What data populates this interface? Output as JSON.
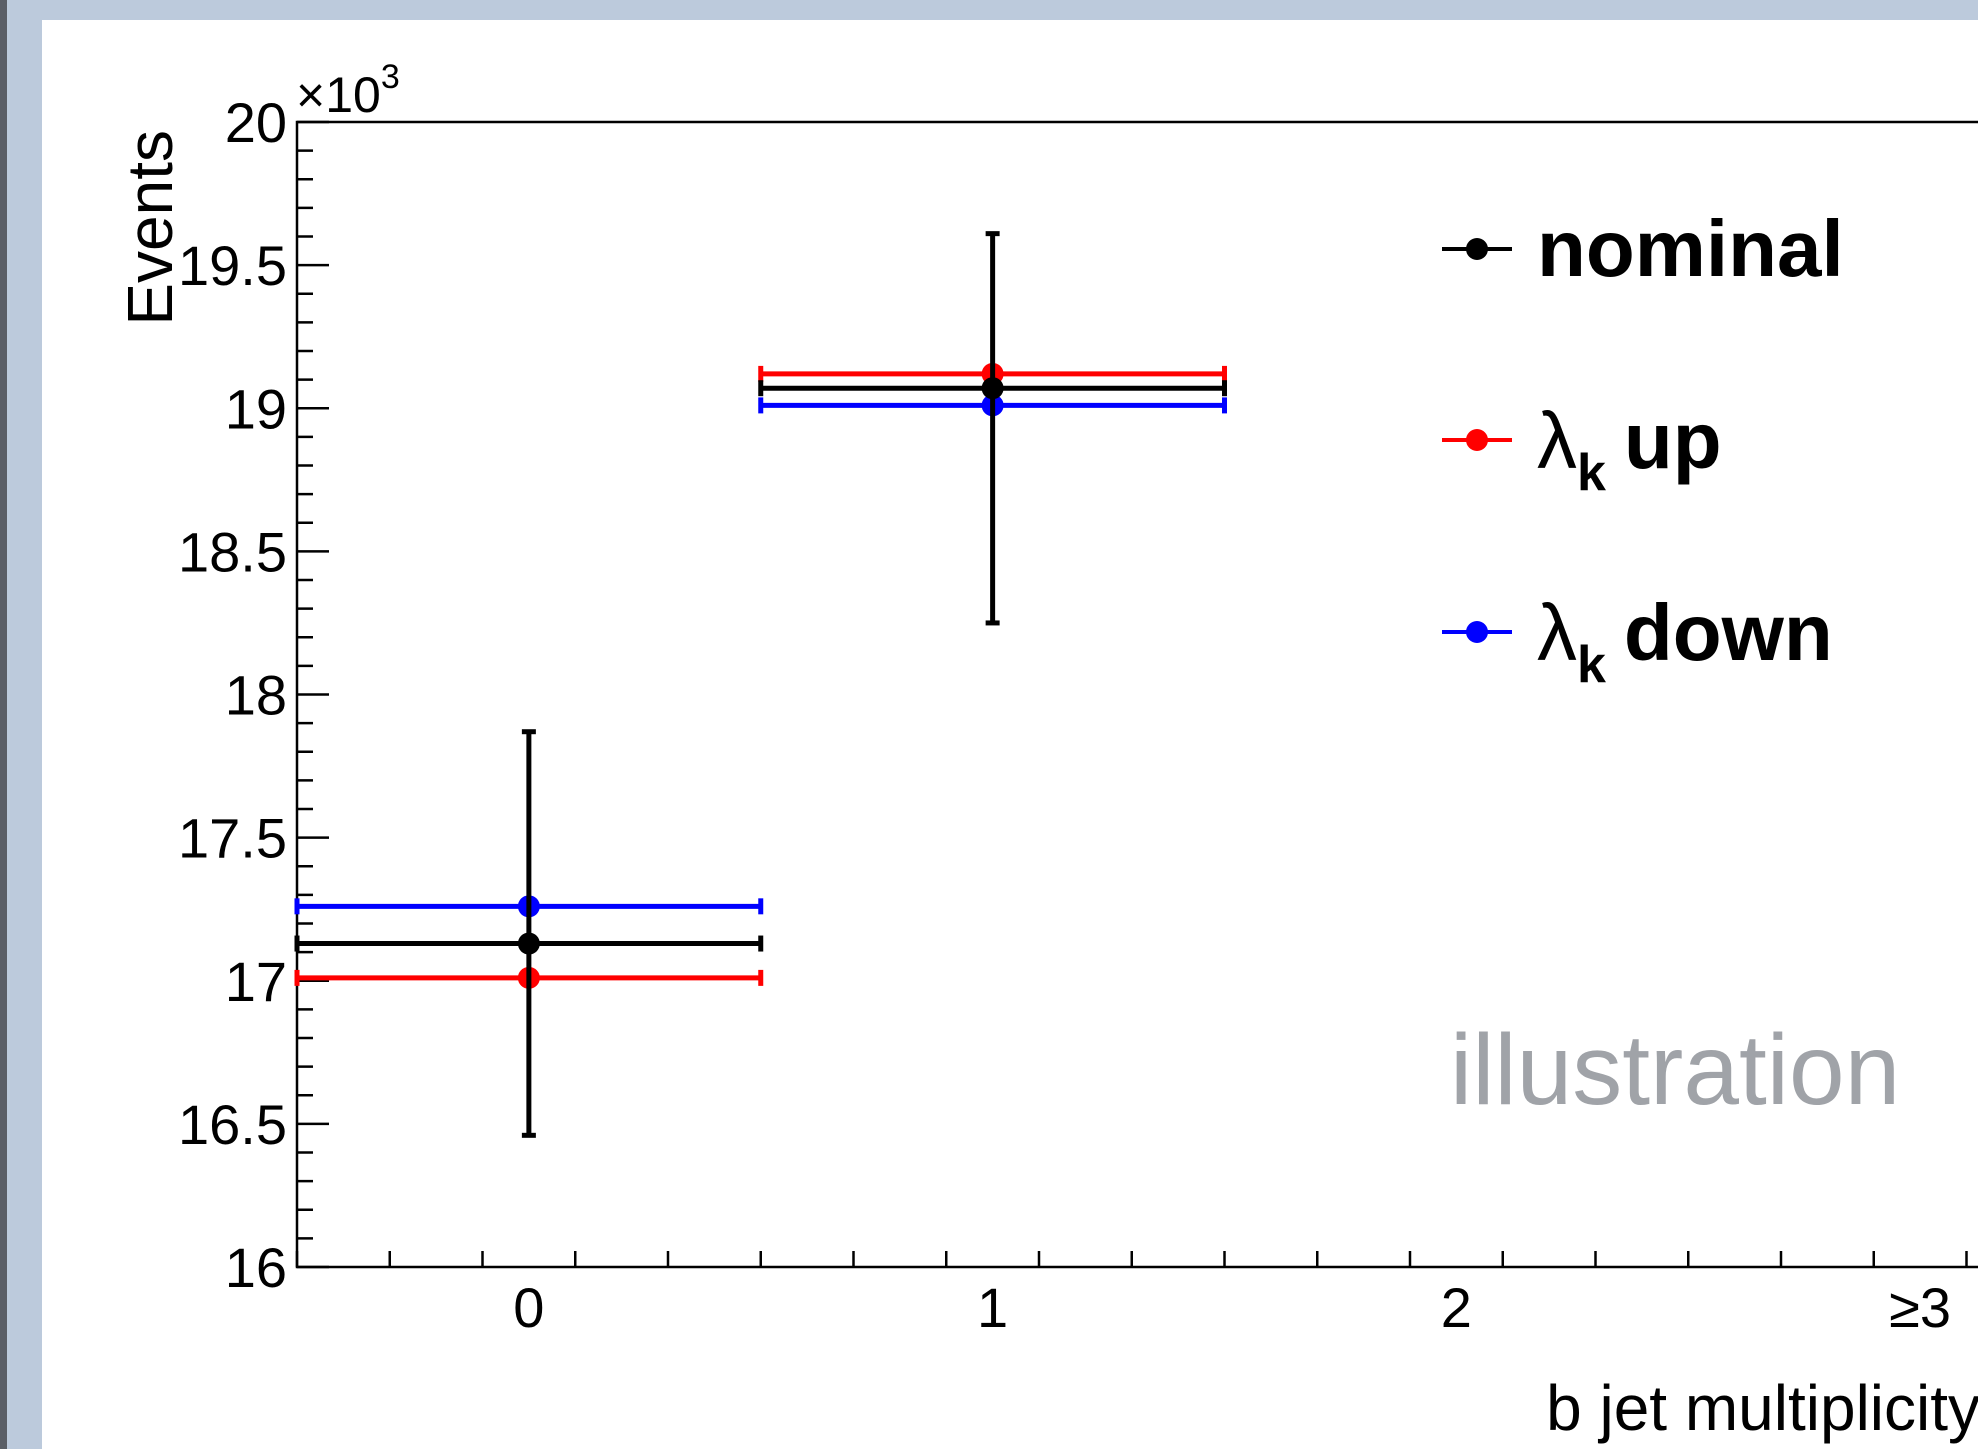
{
  "chart_data": {
    "type": "scatter",
    "xlabel": "b jet multiplicity",
    "ylabel": "Events",
    "y_multiplier_label": "×10",
    "y_multiplier_exponent": "3",
    "ylim": [
      16000,
      20000
    ],
    "xlim": [
      -0.5,
      3.5
    ],
    "x_tick_labels": [
      "0",
      "1",
      "2",
      "≥3"
    ],
    "y_tick_labels": [
      "16",
      "16.5",
      "17",
      "17.5",
      "18",
      "18.5",
      "19",
      "19.5",
      "20"
    ],
    "annotation": "illustration",
    "legend_position": "top-right",
    "series": [
      {
        "name": "nominal",
        "name_prefix": "",
        "name_subscript": "",
        "name_suffix": "nominal",
        "color": "#000000",
        "points": [
          {
            "x": 0,
            "y": 17130,
            "x_err": 0.5,
            "y_err_low": 670,
            "y_err_high": 740
          },
          {
            "x": 1,
            "y": 19070,
            "x_err": 0.5,
            "y_err_low": 820,
            "y_err_high": 540
          }
        ]
      },
      {
        "name": "λk up",
        "name_prefix": "λ",
        "name_subscript": "k",
        "name_suffix": "up",
        "color": "#ff0000",
        "points": [
          {
            "x": 0,
            "y": 17010,
            "x_err": 0.5
          },
          {
            "x": 1,
            "y": 19120,
            "x_err": 0.5
          }
        ]
      },
      {
        "name": "λk down",
        "name_prefix": "λ",
        "name_subscript": "k",
        "name_suffix": "down",
        "color": "#0000ff",
        "points": [
          {
            "x": 0,
            "y": 17260,
            "x_err": 0.5
          },
          {
            "x": 1,
            "y": 19010,
            "x_err": 0.5
          }
        ]
      }
    ]
  }
}
